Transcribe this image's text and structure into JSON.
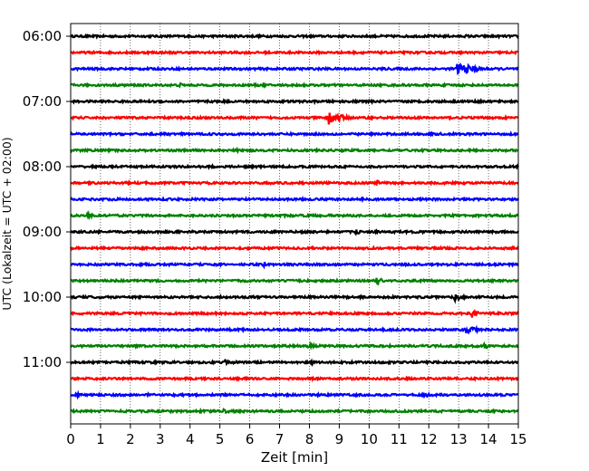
{
  "chart_data": {
    "type": "line",
    "title": "",
    "xlabel": "Zeit  [min]",
    "ylabel": "UTC (Lokalzeit = UTC + 02:00)",
    "xlim": [
      0,
      15
    ],
    "x_ticks": [
      "0",
      "1",
      "2",
      "3",
      "4",
      "5",
      "6",
      "7",
      "8",
      "9",
      "10",
      "11",
      "12",
      "13",
      "14",
      "15"
    ],
    "y_tick_labels": [
      "06:00",
      "07:00",
      "08:00",
      "09:00",
      "10:00",
      "11:00"
    ],
    "grid": "vertical dotted",
    "trace_colors": [
      "#000000",
      "#ff0000",
      "#0000ff",
      "#008000"
    ],
    "series": [
      {
        "time": "06:00",
        "color": "#000000",
        "events": [
          {
            "t": 13.3,
            "amp": 0.15,
            "dur": 0.5
          }
        ]
      },
      {
        "time": "06:15",
        "color": "#ff0000",
        "events": [
          {
            "t": 9.2,
            "amp": 0.12,
            "dur": 0.3
          }
        ]
      },
      {
        "time": "06:30",
        "color": "#0000ff",
        "events": [
          {
            "t": 13.0,
            "amp": 0.7,
            "dur": 1.6
          }
        ]
      },
      {
        "time": "06:45",
        "color": "#008000",
        "events": [
          {
            "t": 3.7,
            "amp": 0.2,
            "dur": 0.6
          }
        ]
      },
      {
        "time": "07:00",
        "color": "#000000",
        "events": []
      },
      {
        "time": "07:15",
        "color": "#ff0000",
        "events": [
          {
            "t": 8.7,
            "amp": 0.75,
            "dur": 1.2
          }
        ]
      },
      {
        "time": "07:30",
        "color": "#0000ff",
        "events": []
      },
      {
        "time": "07:45",
        "color": "#008000",
        "events": [
          {
            "t": 5.6,
            "amp": 0.15,
            "dur": 0.3
          }
        ]
      },
      {
        "time": "08:00",
        "color": "#000000",
        "events": [
          {
            "t": 4.8,
            "amp": 0.15,
            "dur": 0.6
          }
        ]
      },
      {
        "time": "08:15",
        "color": "#ff0000",
        "events": [
          {
            "t": 10.3,
            "amp": 0.35,
            "dur": 0.2
          }
        ]
      },
      {
        "time": "08:30",
        "color": "#0000ff",
        "events": []
      },
      {
        "time": "08:45",
        "color": "#008000",
        "events": [
          {
            "t": 0.6,
            "amp": 0.25,
            "dur": 0.6
          },
          {
            "t": 14.0,
            "amp": 0.2,
            "dur": 0.5
          }
        ]
      },
      {
        "time": "09:00",
        "color": "#000000",
        "events": [
          {
            "t": 9.6,
            "amp": 0.25,
            "dur": 0.5
          }
        ]
      },
      {
        "time": "09:15",
        "color": "#ff0000",
        "events": []
      },
      {
        "time": "09:30",
        "color": "#0000ff",
        "events": [
          {
            "t": 6.5,
            "amp": 0.3,
            "dur": 0.5
          },
          {
            "t": 11.4,
            "amp": 0.12,
            "dur": 0.4
          }
        ]
      },
      {
        "time": "09:45",
        "color": "#008000",
        "events": [
          {
            "t": 10.3,
            "amp": 0.45,
            "dur": 0.7
          }
        ]
      },
      {
        "time": "10:00",
        "color": "#000000",
        "events": [
          {
            "t": 1.0,
            "amp": 0.15,
            "dur": 0.3
          },
          {
            "t": 12.9,
            "amp": 0.4,
            "dur": 0.9
          }
        ]
      },
      {
        "time": "10:15",
        "color": "#ff0000",
        "events": [
          {
            "t": 13.5,
            "amp": 0.5,
            "dur": 0.4
          }
        ]
      },
      {
        "time": "10:30",
        "color": "#0000ff",
        "events": [
          {
            "t": 13.3,
            "amp": 0.4,
            "dur": 1.1
          }
        ]
      },
      {
        "time": "10:45",
        "color": "#008000",
        "events": [
          {
            "t": 8.0,
            "amp": 0.3,
            "dur": 0.6
          },
          {
            "t": 13.9,
            "amp": 0.3,
            "dur": 0.7
          }
        ]
      },
      {
        "time": "11:00",
        "color": "#000000",
        "events": [
          {
            "t": 5.2,
            "amp": 0.25,
            "dur": 0.5
          },
          {
            "t": 8.1,
            "amp": 0.2,
            "dur": 0.4
          }
        ]
      },
      {
        "time": "11:15",
        "color": "#ff0000",
        "events": [
          {
            "t": 9.2,
            "amp": 0.12,
            "dur": 0.6
          }
        ]
      },
      {
        "time": "11:30",
        "color": "#0000ff",
        "events": [
          {
            "t": 0.2,
            "amp": 0.25,
            "dur": 0.4
          },
          {
            "t": 2.6,
            "amp": 0.15,
            "dur": 0.6
          },
          {
            "t": 11.8,
            "amp": 0.3,
            "dur": 1.0
          }
        ]
      },
      {
        "time": "11:45",
        "color": "#008000",
        "events": [
          {
            "t": 1.3,
            "amp": 0.12,
            "dur": 0.4
          },
          {
            "t": 5.1,
            "amp": 0.25,
            "dur": 0.8
          }
        ]
      }
    ]
  }
}
